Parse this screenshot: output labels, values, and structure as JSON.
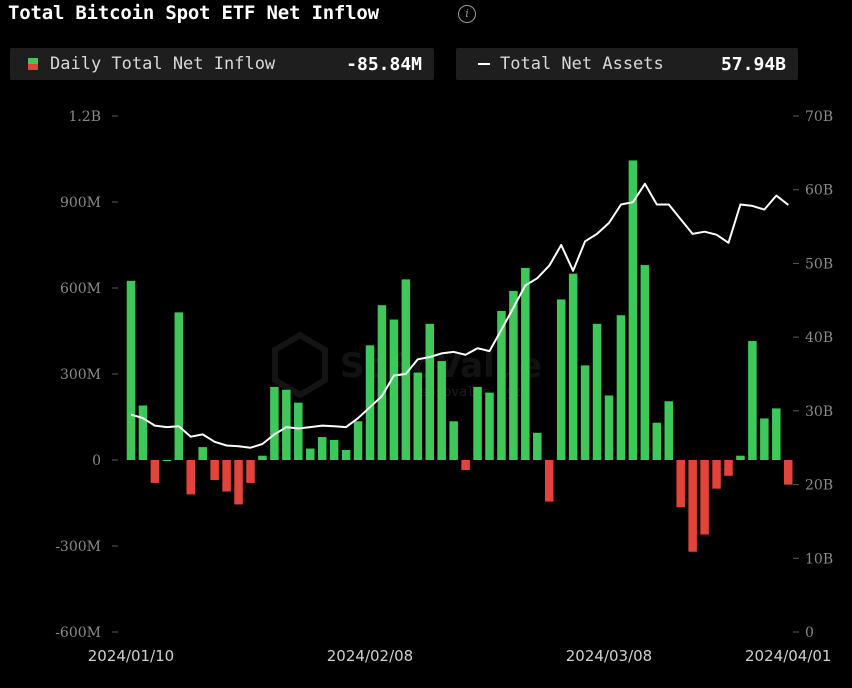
{
  "header": {
    "title": "Total Bitcoin Spot ETF Net Inflow",
    "info_icon": "info-icon"
  },
  "legend": {
    "inflow": {
      "label": "Daily Total Net Inflow",
      "value": "-85.84M",
      "colors": {
        "positive": "#3ec85a",
        "negative": "#e2433a"
      }
    },
    "assets": {
      "label": "Total Net Assets",
      "value": "57.94B",
      "color": "#ffffff"
    }
  },
  "watermark": {
    "text": "SoSoValue",
    "sub": "sosovalue.xyz"
  },
  "chart_data": {
    "type": "bar",
    "title": "Total Bitcoin Spot ETF Net Inflow",
    "xlabel": "",
    "ylabel": "",
    "y_left": {
      "ticks": [
        "1.2B",
        "900M",
        "600M",
        "300M",
        "0",
        "-300M",
        "-600M"
      ],
      "ylim": [
        -600,
        1200
      ],
      "unit": "M"
    },
    "y_right": {
      "ticks": [
        "70B",
        "60B",
        "50B",
        "40B",
        "30B",
        "20B",
        "10B",
        "0"
      ],
      "ylim": [
        0,
        70
      ],
      "unit": "B"
    },
    "x_ticks": [
      "2024/01/10",
      "2024/02/08",
      "2024/03/08",
      "2024/04/01"
    ],
    "x_tick_index": [
      0,
      20,
      40,
      55
    ],
    "grid": false,
    "series": [
      {
        "name": "Daily Total Net Inflow",
        "type": "bar",
        "values": [
          625,
          190,
          -80,
          0,
          515,
          -120,
          45,
          -70,
          -110,
          -155,
          -80,
          15,
          255,
          245,
          200,
          40,
          80,
          70,
          35,
          135,
          400,
          540,
          490,
          630,
          305,
          475,
          345,
          135,
          -35,
          255,
          235,
          520,
          590,
          670,
          95,
          -145,
          560,
          650,
          330,
          475,
          225,
          505,
          1045,
          680,
          130,
          205,
          -165,
          -320,
          -260,
          -100,
          -55,
          15,
          415,
          145,
          180,
          -85.84
        ]
      },
      {
        "name": "Total Net Assets",
        "type": "line",
        "values": [
          29.5,
          29.0,
          28.0,
          27.8,
          27.9,
          26.5,
          26.8,
          25.8,
          25.3,
          25.2,
          25.0,
          25.5,
          26.8,
          27.8,
          27.6,
          27.8,
          28.0,
          27.9,
          27.8,
          29.0,
          30.5,
          32.0,
          34.8,
          35.0,
          37.0,
          37.3,
          37.8,
          38.0,
          37.6,
          38.5,
          38.1,
          41.0,
          44.0,
          47.0,
          48.0,
          49.7,
          52.5,
          49.0,
          53.0,
          54.0,
          55.5,
          58.0,
          58.3,
          60.8,
          58.0,
          58.0,
          56.0,
          54.0,
          54.3,
          53.9,
          52.8,
          58.0,
          57.8,
          57.3,
          59.2,
          57.94
        ]
      }
    ]
  }
}
